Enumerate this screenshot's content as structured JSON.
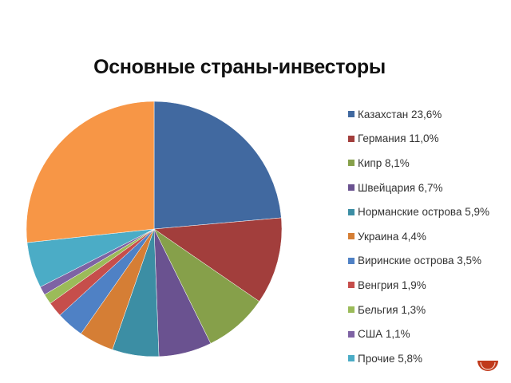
{
  "title": "Основные страны-инвесторы",
  "legend": [
    {
      "label": "Казахстан 23,6%",
      "color": "#4169A0"
    },
    {
      "label": "Германия 11,0%",
      "color": "#A23E3C"
    },
    {
      "label": "Кипр 8,1%",
      "color": "#86A04A"
    },
    {
      "label": "Швейцария 6,7%",
      "color": "#6A5290"
    },
    {
      "label": "Норманские острова 5,9%",
      "color": "#3C8EA4"
    },
    {
      "label": "Украина 4,4%",
      "color": "#D57E35"
    },
    {
      "label": "Виринские острова 3,5%",
      "color": "#4F81C5"
    },
    {
      "label": "Венгрия 1,9%",
      "color": "#C64E4B"
    },
    {
      "label": "Бельгия 1,3%",
      "color": "#9BBB59"
    },
    {
      "label": "США 1,1%",
      "color": "#7E63A4"
    },
    {
      "label": "Прочие 5,8%",
      "color": "#4BACC6"
    }
  ],
  "chart_data": {
    "type": "pie",
    "title": "Основные страны-инвесторы",
    "categories": [
      "Казахстан",
      "Германия",
      "Кипр",
      "Швейцария",
      "Норманские острова",
      "Украина",
      "Виринские острова",
      "Венгрия",
      "Бельгия",
      "США",
      "Прочие",
      "(без подписи)"
    ],
    "values": [
      23.6,
      11.0,
      8.1,
      6.7,
      5.9,
      4.4,
      3.5,
      1.9,
      1.3,
      1.1,
      5.8,
      26.7
    ],
    "colors": [
      "#4169A0",
      "#A23E3C",
      "#86A04A",
      "#6A5290",
      "#3C8EA4",
      "#D57E35",
      "#4F81C5",
      "#C64E4B",
      "#9BBB59",
      "#7E63A4",
      "#4BACC6",
      "#F79646"
    ],
    "unit": "%",
    "start_angle": "12 o'clock, clockwise",
    "legend_position": "right",
    "notes": "Last orange slice (~26.7%) is not listed in legend"
  },
  "corner_icon": {
    "name": "orange-semicircle-logo",
    "color": "#C0391B"
  }
}
